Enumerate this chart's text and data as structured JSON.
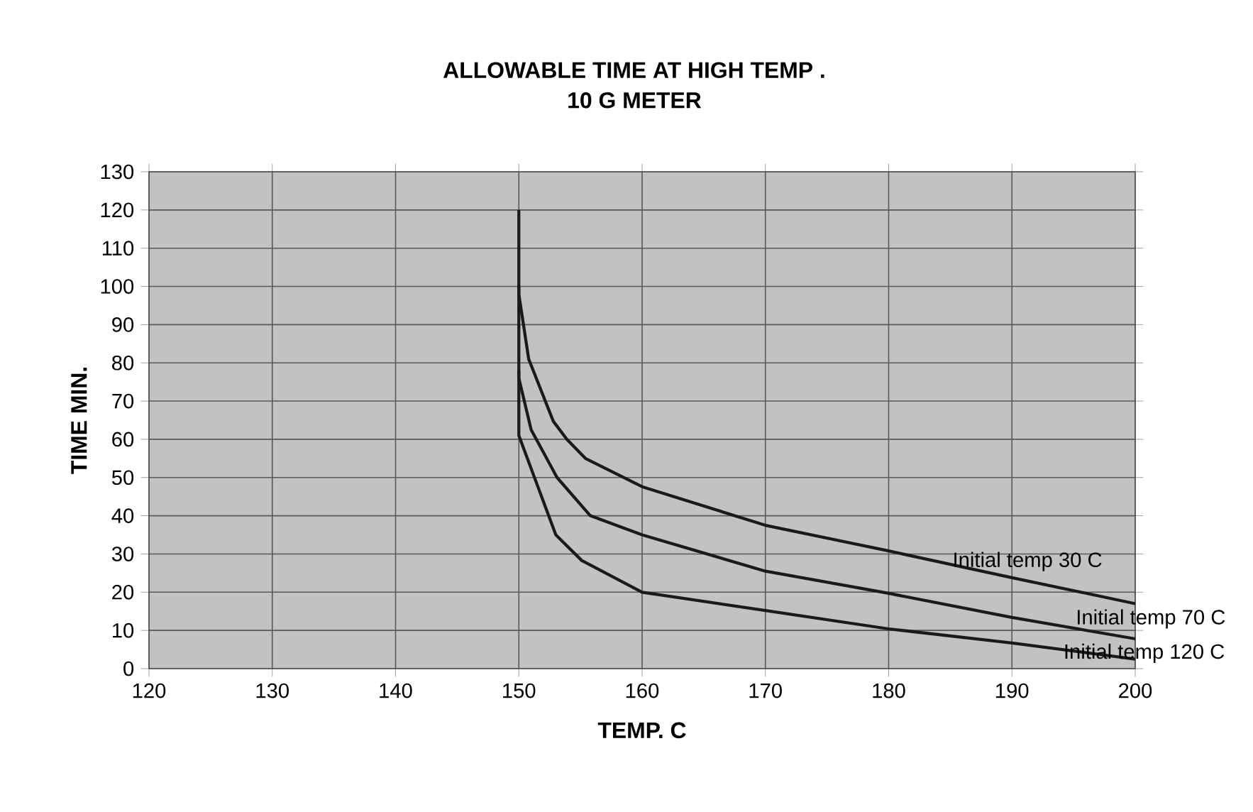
{
  "chart_data": {
    "type": "line",
    "title": "ALLOWABLE TIME AT HIGH TEMP .",
    "subtitle": "10 G METER",
    "xlabel": "TEMP. C",
    "ylabel": "TIME MIN.",
    "xlim": [
      120,
      200
    ],
    "ylim": [
      0,
      130
    ],
    "xticks": [
      120,
      130,
      140,
      150,
      160,
      170,
      180,
      190,
      200
    ],
    "yticks": [
      0,
      10,
      20,
      30,
      40,
      50,
      60,
      70,
      80,
      90,
      100,
      110,
      120,
      130
    ],
    "grid": true,
    "legend": false,
    "marker": "none",
    "line_style": "solid",
    "series": [
      {
        "name": "Initial temp 30 C",
        "color": "#1a1a1a",
        "x": [
          150,
          150,
          150.8,
          152.8,
          153.9,
          155.4,
          160,
          170,
          180,
          190,
          200
        ],
        "values": [
          120,
          98,
          81,
          64.7,
          60,
          55,
          47.6,
          37.5,
          30.8,
          23.8,
          17
        ]
      },
      {
        "name": "Initial temp 70 C",
        "color": "#1a1a1a",
        "x": [
          150,
          150,
          151,
          153.1,
          155.8,
          160,
          170,
          180,
          190,
          200
        ],
        "values": [
          100,
          76,
          62.5,
          50,
          40,
          35,
          25.5,
          19.7,
          13.4,
          7.8
        ]
      },
      {
        "name": "Initial temp 120 C",
        "color": "#1a1a1a",
        "x": [
          150,
          150,
          153,
          155.1,
          160,
          170,
          180,
          190,
          200
        ],
        "values": [
          78,
          61,
          35,
          28.3,
          20,
          15.2,
          10.4,
          6.7,
          2.5
        ]
      }
    ]
  }
}
